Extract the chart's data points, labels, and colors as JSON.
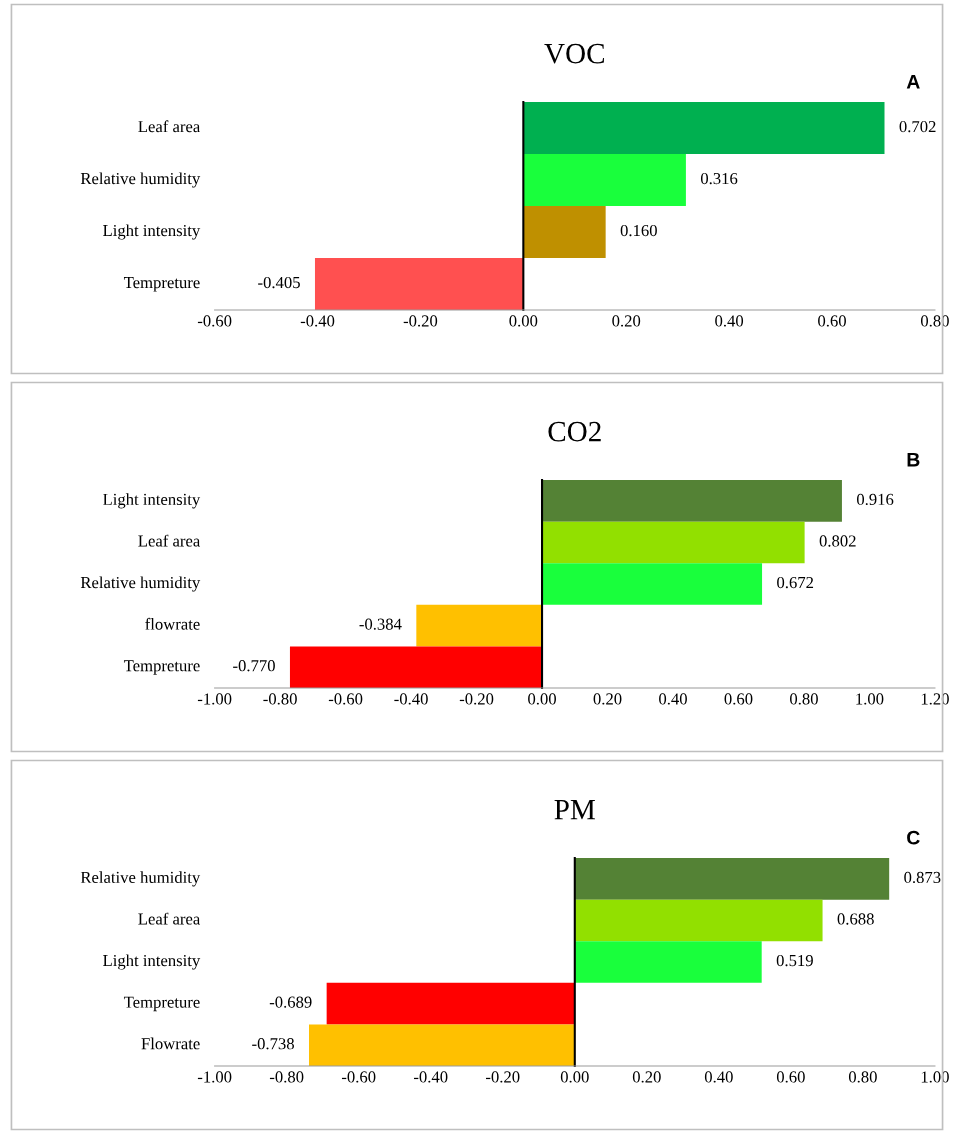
{
  "chart_data": [
    {
      "type": "bar",
      "orientation": "horizontal",
      "title": "VOC",
      "annotations": [
        "A"
      ],
      "categories": [
        "Leaf area",
        "Relative humidity",
        "Light intensity",
        "Tempreture"
      ],
      "values": [
        0.702,
        0.316,
        0.16,
        -0.405
      ],
      "colors": [
        "#00b050",
        "#19ff3c",
        "#bf9000",
        "#ff5050"
      ],
      "value_labels": [
        "0.702",
        "0.316",
        "0.160",
        "-0.405"
      ],
      "xlim": [
        -0.6,
        0.8
      ],
      "xticks": [
        {
          "value": -0.6,
          "label": "-0.60"
        },
        {
          "value": -0.4,
          "label": "-0.40"
        },
        {
          "value": -0.2,
          "label": "-0.20"
        },
        {
          "value": 0,
          "label": "0.00"
        },
        {
          "value": 0.2,
          "label": "0.20"
        },
        {
          "value": 0.4,
          "label": "0.40"
        },
        {
          "value": 0.6,
          "label": "0.60"
        },
        {
          "value": 0.8,
          "label": "0.80"
        }
      ]
    },
    {
      "type": "bar",
      "orientation": "horizontal",
      "title": "CO2",
      "annotations": [
        "B"
      ],
      "categories": [
        "Light intensity",
        "Leaf area",
        "Relative humidity",
        "flowrate",
        "Tempreture"
      ],
      "values": [
        0.916,
        0.802,
        0.672,
        -0.384,
        -0.77
      ],
      "colors": [
        "#548235",
        "#92e000",
        "#19ff3c",
        "#ffc000",
        "#ff0000"
      ],
      "value_labels": [
        "0.916",
        "0.802",
        "0.672",
        "-0.384",
        "-0.770"
      ],
      "xlim": [
        -1.0,
        1.2
      ],
      "xticks": [
        {
          "value": -1.0,
          "label": "-1.00"
        },
        {
          "value": -0.8,
          "label": "-0.80"
        },
        {
          "value": -0.6,
          "label": "-0.60"
        },
        {
          "value": -0.4,
          "label": "-0.40"
        },
        {
          "value": -0.2,
          "label": "-0.20"
        },
        {
          "value": 0,
          "label": "0.00"
        },
        {
          "value": 0.2,
          "label": "0.20"
        },
        {
          "value": 0.4,
          "label": "0.40"
        },
        {
          "value": 0.6,
          "label": "0.60"
        },
        {
          "value": 0.8,
          "label": "0.80"
        },
        {
          "value": 1.0,
          "label": "1.00"
        },
        {
          "value": 1.2,
          "label": "1.20"
        }
      ]
    },
    {
      "type": "bar",
      "orientation": "horizontal",
      "title": "PM",
      "annotations": [
        "C"
      ],
      "categories": [
        "Relative humidity",
        "Leaf area",
        "Light intensity",
        "Tempreture",
        "Flowrate"
      ],
      "values": [
        0.873,
        0.688,
        0.519,
        -0.689,
        -0.738
      ],
      "colors": [
        "#548235",
        "#92e000",
        "#19ff3c",
        "#ff0000",
        "#ffc000"
      ],
      "value_labels": [
        "0.873",
        "0.688",
        "0.519",
        "-0.689",
        "-0.738"
      ],
      "xlim": [
        -1.0,
        1.0
      ],
      "xticks": [
        {
          "value": -1.0,
          "label": "-1.00"
        },
        {
          "value": -0.8,
          "label": "-0.80"
        },
        {
          "value": -0.6,
          "label": "-0.60"
        },
        {
          "value": -0.4,
          "label": "-0.40"
        },
        {
          "value": -0.2,
          "label": "-0.20"
        },
        {
          "value": 0,
          "label": "0.00"
        },
        {
          "value": 0.2,
          "label": "0.20"
        },
        {
          "value": 0.4,
          "label": "0.40"
        },
        {
          "value": 0.6,
          "label": "0.60"
        },
        {
          "value": 0.8,
          "label": "0.80"
        },
        {
          "value": 1.0,
          "label": "1.00"
        }
      ]
    }
  ]
}
